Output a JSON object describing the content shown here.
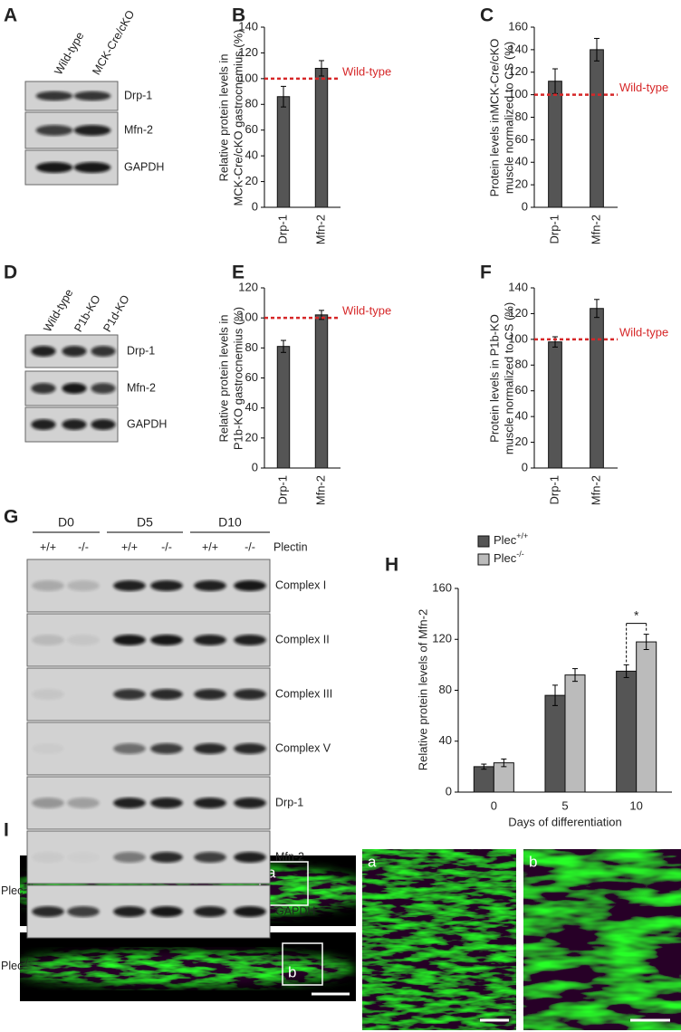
{
  "panel_labels": [
    "A",
    "B",
    "C",
    "D",
    "E",
    "F",
    "G",
    "H",
    "I"
  ],
  "blots": [
    {
      "lanes": [
        "Wild-type",
        "MCK-Cre/cKO"
      ],
      "rows": [
        "Drp-1",
        "Mfn-2",
        "GAPDH"
      ]
    },
    {
      "lanes": [
        "Wild-type",
        "P1b-KO",
        "P1d-KO"
      ],
      "rows": [
        "Drp-1",
        "Mfn-2",
        "GAPDH"
      ]
    },
    {
      "groups": [
        "D0",
        "D5",
        "D10"
      ],
      "lanes": [
        "+/+",
        "-/-",
        "+/+",
        "-/-",
        "+/+",
        "-/-"
      ],
      "lane_label": "Plectin",
      "rows": [
        "Complex I",
        "Complex II",
        "Complex III",
        "Complex V",
        "Drp-1",
        "Mfn-2",
        "GAPDH"
      ]
    }
  ],
  "chart_data": [
    {
      "type": "bar",
      "y_label": [
        "Relative protein levels in",
        "MCK-Cre/cKO gastrocnemius (%)"
      ],
      "categories": [
        "Drp-1",
        "Mfn-2"
      ],
      "values": [
        86,
        108
      ],
      "errors": [
        8,
        6
      ],
      "color": "#555555",
      "ylim": [
        0,
        140
      ],
      "yticks": [
        0,
        20,
        40,
        60,
        80,
        100,
        120,
        140
      ],
      "reference_line": {
        "value": 100,
        "label": "Wild-type",
        "color": "#d62728"
      }
    },
    {
      "type": "bar",
      "y_label": [
        "Protein levels inMCK-Cre/cKO",
        "muscle normalized to CS (%)"
      ],
      "categories": [
        "Drp-1",
        "Mfn-2"
      ],
      "values": [
        112,
        140
      ],
      "errors": [
        11,
        10
      ],
      "color": "#555555",
      "ylim": [
        0,
        160
      ],
      "yticks": [
        0,
        20,
        40,
        60,
        80,
        100,
        120,
        140,
        160
      ],
      "reference_line": {
        "value": 100,
        "label": "Wild-type",
        "color": "#d62728"
      }
    },
    {
      "type": "bar",
      "y_label": [
        "Relative protein levels in",
        "P1b-KO gastrocnemius (%)"
      ],
      "categories": [
        "Drp-1",
        "Mfn-2"
      ],
      "values": [
        81,
        102
      ],
      "errors": [
        4,
        3
      ],
      "color": "#555555",
      "ylim": [
        0,
        120
      ],
      "yticks": [
        0,
        20,
        40,
        60,
        80,
        100,
        120
      ],
      "reference_line": {
        "value": 100,
        "label": "Wild-type",
        "color": "#d62728"
      }
    },
    {
      "type": "bar",
      "y_label": [
        "Protein levels in P1b-KO",
        "muscle normalized to CS (%)"
      ],
      "categories": [
        "Drp-1",
        "Mfn-2"
      ],
      "values": [
        98,
        124
      ],
      "errors": [
        4,
        7
      ],
      "color": "#555555",
      "ylim": [
        0,
        140
      ],
      "yticks": [
        0,
        20,
        40,
        60,
        80,
        100,
        120,
        140
      ],
      "reference_line": {
        "value": 100,
        "label": "Wild-type",
        "color": "#d62728"
      }
    },
    {
      "type": "grouped_bar",
      "y_label": "Relative protein levels of Mfn-2",
      "x_label": "Days of differentiation",
      "categories": [
        "0",
        "5",
        "10"
      ],
      "series": [
        {
          "name": "Plec+/+",
          "color": "#555555",
          "values": [
            20,
            76,
            95
          ],
          "errors": [
            2,
            8,
            5
          ]
        },
        {
          "name": "Plec-/-",
          "color": "#bbbbbb",
          "values": [
            23,
            92,
            118
          ],
          "errors": [
            3,
            5,
            6
          ]
        }
      ],
      "ylim": [
        0,
        160
      ],
      "yticks": [
        0,
        40,
        80,
        120,
        160
      ],
      "annotation": "*"
    }
  ],
  "imaging": {
    "rows": [
      "Plec+/+",
      "Plec-/-"
    ],
    "insets": [
      "a",
      "b"
    ]
  }
}
